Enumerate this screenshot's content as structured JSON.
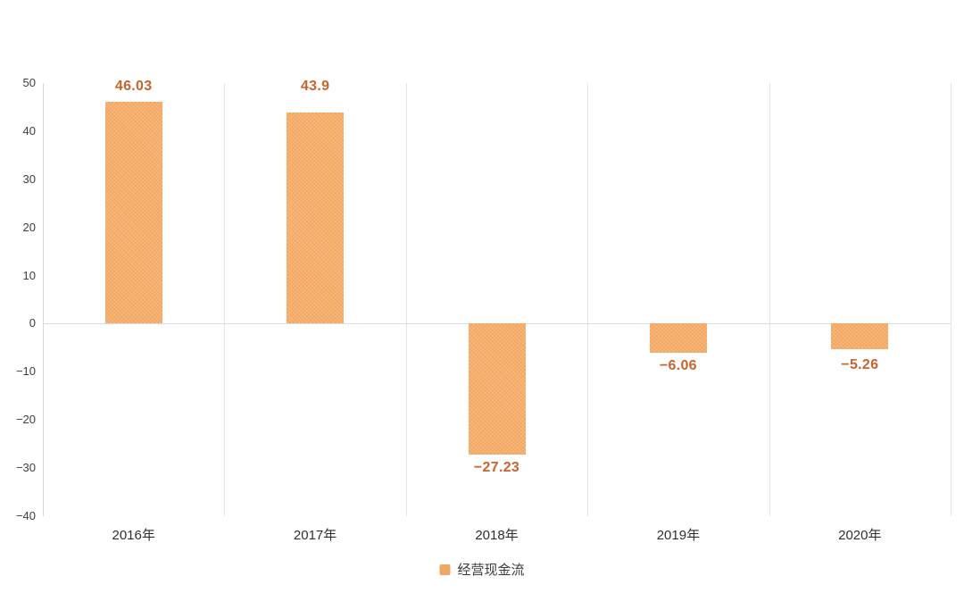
{
  "chart_data": {
    "type": "bar",
    "categories": [
      "2016年",
      "2017年",
      "2018年",
      "2019年",
      "2020年"
    ],
    "values": [
      46.03,
      43.9,
      -27.23,
      -6.06,
      -5.26
    ],
    "value_labels": [
      "46.03",
      "43.9",
      "−27.23",
      "−6.06",
      "−5.26"
    ],
    "series_name": "经营现金流",
    "title": "",
    "xlabel": "",
    "ylabel": "",
    "ylim": [
      -40,
      50
    ],
    "y_ticks": [
      50,
      40,
      30,
      20,
      10,
      0,
      -10,
      -20,
      -30,
      -40
    ],
    "grid": {
      "vertical_gridlines": true,
      "horizontal_gridlines": false,
      "zero_line": true,
      "left_axis_line": true
    },
    "legend": {
      "position": "bottom-center",
      "items": [
        {
          "label": "经营现金流",
          "color": "#f0a765"
        }
      ]
    },
    "colors": {
      "bar_fill": "#f5ad6e",
      "value_label": "#c9632e",
      "tick_label": "#3d3d3d",
      "category_label": "#2f2f2f",
      "grid_line": "#e4e4e4",
      "axis_line": "#d8d8d8",
      "zero_line": "#dcdcdc"
    },
    "label_pixel_dy": [
      0,
      -12,
      0,
      0,
      3
    ]
  }
}
